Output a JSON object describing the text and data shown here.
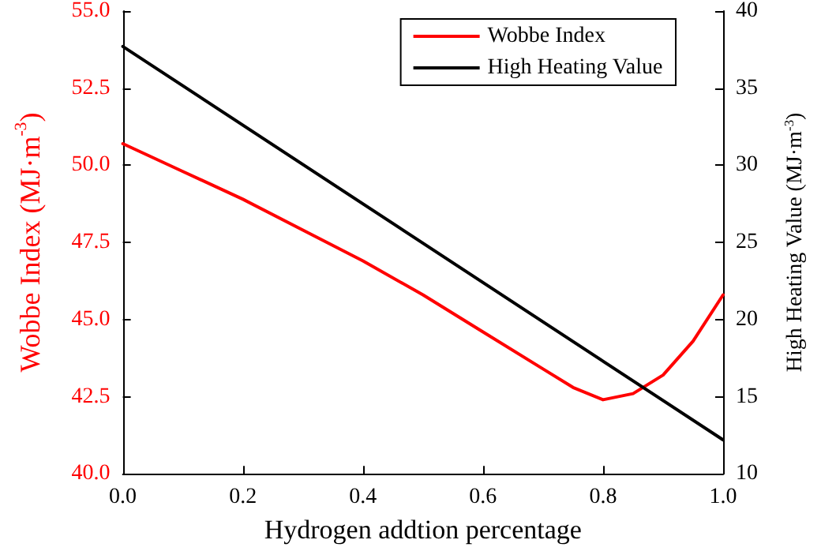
{
  "chart_data": {
    "type": "line",
    "xlabel": "Hydrogen addtion percentage",
    "ylabel": "Wobbe Index (MJ·m$^{-3}$)",
    "y2label": "High Heating Value (MJ·m$^{-3}$)",
    "x": [
      0,
      0.1,
      0.2,
      0.3,
      0.4,
      0.5,
      0.6,
      0.7,
      0.75,
      0.8,
      0.85,
      0.9,
      0.95,
      1.0
    ],
    "series": [
      {
        "name": "Wobbe Index",
        "color": "#ff0000",
        "values": [
          50.7,
          49.8,
          48.9,
          47.9,
          46.9,
          45.8,
          44.6,
          43.4,
          42.8,
          42.4,
          42.6,
          43.2,
          44.3,
          45.8
        ]
      },
      {
        "name": "High Heating Value",
        "color": "#000000",
        "axis": "y2",
        "x": [
          0,
          1.0
        ],
        "values": [
          37.7,
          12.2
        ]
      }
    ],
    "xlim": [
      0,
      1.0
    ],
    "xticks": [
      {
        "value": 0,
        "label": "0.0"
      },
      0.2,
      0.4,
      0.6,
      0.8,
      {
        "value": 1.0,
        "label": "1.0"
      }
    ],
    "ylim": [
      40,
      55
    ],
    "yticks": [
      {
        "value": 40,
        "label": "40.0"
      },
      42.5,
      {
        "value": 45,
        "label": "45.0"
      },
      47.5,
      {
        "value": 50,
        "label": "50.0"
      },
      52.5,
      {
        "value": 55,
        "label": "55.0"
      }
    ],
    "y2lim": [
      10,
      40
    ],
    "y2ticks": [
      10,
      15,
      20,
      25,
      30,
      35,
      40
    ],
    "grid": false,
    "legend": "top right",
    "marker": "none",
    "line_style": "solid"
  }
}
